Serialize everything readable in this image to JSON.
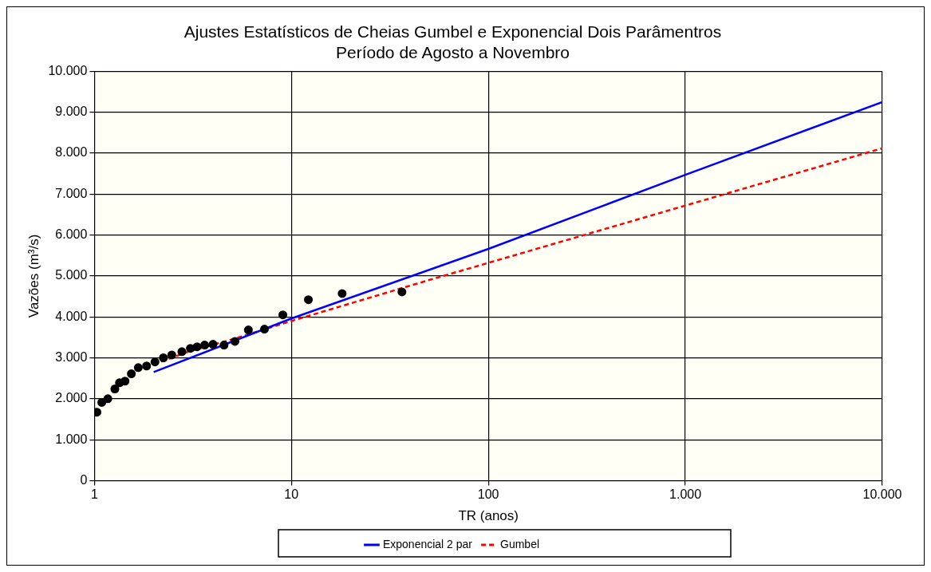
{
  "chart_data": {
    "type": "scatter",
    "title": "Ajustes Estatísticos de Cheias Gumbel e Exponencial Dois Parâmentros",
    "subtitle": "Período de Agosto a Novembro",
    "xlabel": "TR (anos)",
    "ylabel": "Vazões (m³/s)",
    "log": "x",
    "grid": true,
    "legend": "bottom",
    "xlim": [
      1,
      10000
    ],
    "xticks": [
      1,
      10,
      100,
      {
        "value": 1000,
        "label": "1.000"
      },
      {
        "value": 10000,
        "label": "10.000"
      }
    ],
    "ylim": [
      0,
      10000
    ],
    "yticks": [
      0,
      {
        "value": 1000,
        "label": "1.000"
      },
      {
        "value": 2000,
        "label": "2.000"
      },
      {
        "value": 3000,
        "label": "3.000"
      },
      {
        "value": 4000,
        "label": "4.000"
      },
      {
        "value": 5000,
        "label": "5.000"
      },
      {
        "value": 6000,
        "label": "6.000"
      },
      {
        "value": 7000,
        "label": "7.000"
      },
      {
        "value": 8000,
        "label": "8.000"
      },
      {
        "value": 9000,
        "label": "9.000"
      },
      {
        "value": 10000,
        "label": "10.000"
      }
    ],
    "series": [
      {
        "color": "#000000",
        "marker": "circle",
        "x": [
          1.03,
          1.09,
          1.17,
          1.27,
          1.34,
          1.43,
          1.54,
          1.67,
          1.84,
          2.03,
          2.24,
          2.47,
          2.78,
          3.07,
          3.32,
          3.63,
          4.0,
          4.55,
          5.17,
          6.05,
          7.3,
          9.05,
          12.2,
          18.1,
          36.4
        ],
        "values": [
          1670,
          1910,
          2000,
          2240,
          2390,
          2430,
          2610,
          2760,
          2800,
          2900,
          3000,
          3070,
          3150,
          3230,
          3270,
          3310,
          3330,
          3310,
          3400,
          3680,
          3700,
          4050,
          4420,
          4570,
          4610
        ]
      },
      {
        "type": "line",
        "name": "Exponencial 2 par",
        "color": "#0000ff",
        "marker": "none",
        "line_style": "solid",
        "x": [
          2,
          10,
          100,
          1000,
          10000
        ],
        "values": [
          2650,
          3960,
          5660,
          7470,
          9250
        ]
      },
      {
        "type": "line",
        "name": "Gumbel",
        "color": "#ff0000",
        "marker": "none",
        "line_style": "dashed",
        "x": [
          2,
          3,
          5,
          10,
          20,
          50,
          100,
          1000,
          10000
        ],
        "values": [
          2840,
          3150,
          3450,
          3900,
          4330,
          4900,
          5320,
          6720,
          8120
        ]
      }
    ]
  }
}
